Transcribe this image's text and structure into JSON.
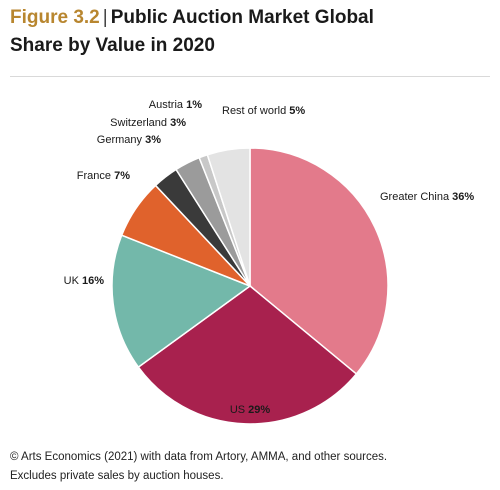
{
  "figure": {
    "number": "Figure 3.2",
    "separator": "|",
    "title_line1": "Public Auction Market Global",
    "title_line2": "Share by Value in 2020"
  },
  "chart_data": {
    "type": "pie",
    "title": "Public Auction Market Global Share by Value in 2020",
    "unit": "%",
    "start_angle_deg": 0,
    "direction": "clockwise",
    "slices": [
      {
        "label": "Greater China",
        "value": 36,
        "color": "#e37a8b"
      },
      {
        "label": "US",
        "value": 29,
        "color": "#a8214e"
      },
      {
        "label": "UK",
        "value": 16,
        "color": "#73b8aa"
      },
      {
        "label": "France",
        "value": 7,
        "color": "#e0622c"
      },
      {
        "label": "Germany",
        "value": 3,
        "color": "#3a3a3a"
      },
      {
        "label": "Switzerland",
        "value": 3,
        "color": "#9b9b9b"
      },
      {
        "label": "Austria",
        "value": 1,
        "color": "#c8c8c8"
      },
      {
        "label": "Rest of world",
        "value": 5,
        "color": "#e3e3e3"
      }
    ]
  },
  "footer": {
    "line1": "© Arts Economics (2021) with data from Artory, AMMA, and other sources.",
    "line2": "Excludes private sales by auction houses."
  }
}
